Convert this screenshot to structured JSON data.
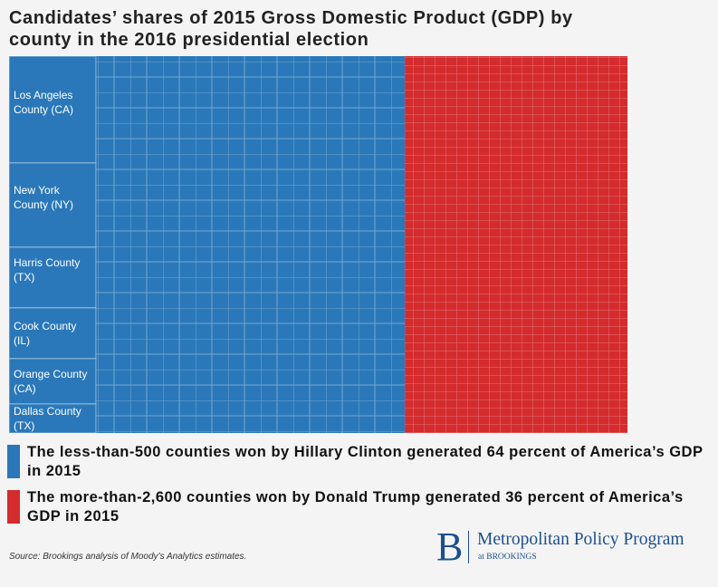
{
  "chart_data": {
    "type": "treemap",
    "title": "Candidates’ shares of 2015 Gross Domestic Product (GDP) by county in the 2016 presidential election",
    "groups": [
      {
        "name": "The less-than-500 counties won by Hillary Clinton generated 64 percent of America’s GDP in 2015",
        "color": "#2a78b9",
        "value": 64,
        "counties": [
          {
            "name": "Los Angeles County (CA)",
            "value": 3.98
          },
          {
            "name": "New York County (NY)",
            "value": 3.14
          },
          {
            "name": "Harris County (TX)",
            "value": 2.26
          },
          {
            "name": "Cook County (IL)",
            "value": 1.89
          },
          {
            "name": "Orange County (CA)",
            "value": 1.69
          },
          {
            "name": "Dallas County (TX)",
            "value": 1.08
          }
        ]
      },
      {
        "name": "The more-than-2,600 counties won by Donald Trump generated 36 percent of America’s GDP in 2015",
        "color": "#d42b2d",
        "value": 36
      }
    ]
  },
  "footer": {
    "source": "Source: Brookings analysis of Moody’s Analytics estimates.",
    "logo_letter": "B",
    "program": "Metropolitan Policy Program",
    "org": "at BROOKINGS"
  }
}
